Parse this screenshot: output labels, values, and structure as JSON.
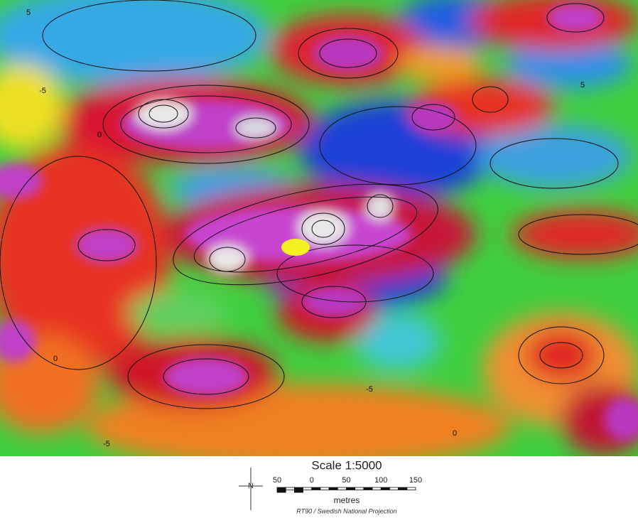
{
  "map": {
    "contour_labels": [
      "5",
      "-5",
      "0",
      "-5",
      "0",
      "5",
      "0",
      "-5"
    ],
    "north_label": "N",
    "scale_title": "Scale 1:5000",
    "scale_ticks": [
      "50",
      "0",
      "50",
      "100",
      "150"
    ],
    "scale_unit": "metres",
    "projection": "RT90 / Swedish National Projection"
  }
}
